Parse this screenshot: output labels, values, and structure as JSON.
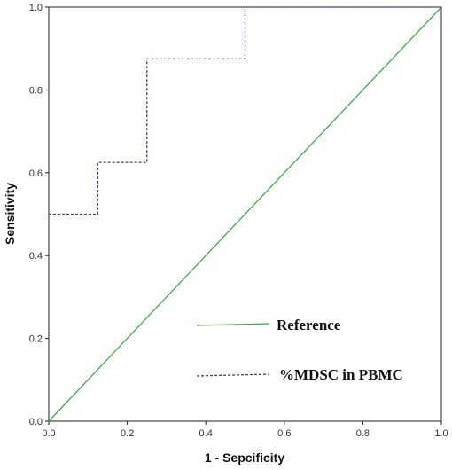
{
  "chart_data": {
    "type": "line",
    "title": "",
    "xlabel": "1 - Sepcificity",
    "ylabel": "Sensitivity",
    "xlim": [
      0,
      1
    ],
    "ylim": [
      0,
      1
    ],
    "x_ticks": [
      "0.0",
      "0.2",
      "0.4",
      "0.6",
      "0.8",
      "1.0"
    ],
    "y_ticks": [
      "0.0",
      "0.2",
      "0.4",
      "0.6",
      "0.8",
      "1.0"
    ],
    "grid": false,
    "legend_position": "bottom-right",
    "series": [
      {
        "name": "Reference",
        "style": "solid",
        "color": "#3cb043",
        "points": [
          [
            0,
            0
          ],
          [
            1,
            1
          ]
        ]
      },
      {
        "name": "%MDSC in PBMC",
        "style": "dashed",
        "color": "#3a3f8f",
        "points": [
          [
            0,
            0.5
          ],
          [
            0.125,
            0.5
          ],
          [
            0.125,
            0.625
          ],
          [
            0.25,
            0.625
          ],
          [
            0.25,
            0.875
          ],
          [
            0.5,
            0.875
          ],
          [
            0.5,
            1.0
          ],
          [
            1.0,
            1.0
          ]
        ]
      }
    ]
  }
}
